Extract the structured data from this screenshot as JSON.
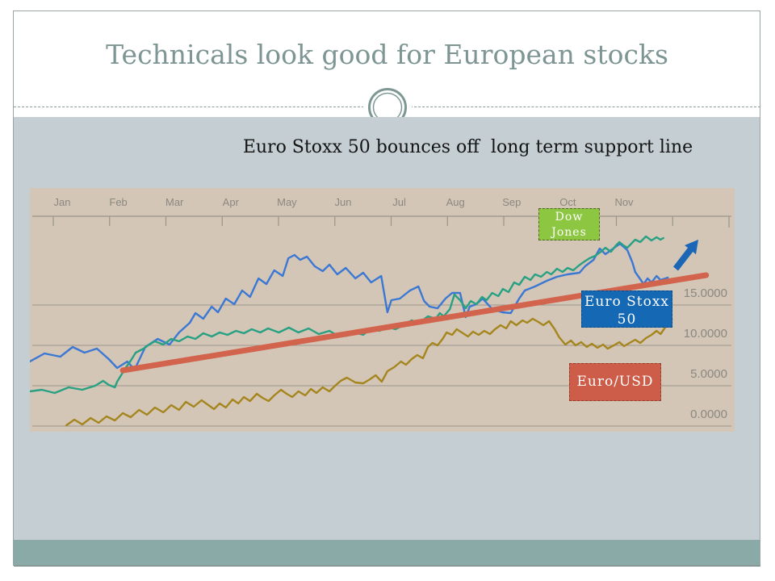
{
  "slide": {
    "title": "Technicals look good for European stocks",
    "subtitle": "Euro Stoxx 50 bounces off  long term support line"
  },
  "theme": {
    "title_color": "#7d9694",
    "body_bg": "#c4ced3",
    "footer_bar": "#89aaa6",
    "footer_bar_edge": "#64817e",
    "frame_border": "#9aa4a4",
    "divider": "#8a9c9b",
    "ornament_ring": "#7d9894"
  },
  "chart_data": {
    "type": "line",
    "x_axis": {
      "unit": "months (0 = Jan tick, 10 = Nov tick)",
      "labels": [
        "Jan",
        "Feb",
        "Mar",
        "Apr",
        "May",
        "Jun",
        "Jul",
        "Aug",
        "Sep",
        "Oct",
        "Nov"
      ]
    },
    "y_axis": {
      "side": "right",
      "tick_labels": [
        "15.0000",
        "10.0000",
        "5.0000",
        "0.0000"
      ],
      "tick_values": [
        15,
        10,
        5,
        0
      ]
    },
    "ylim": [
      0,
      26.2
    ],
    "xlim": [
      -0.45,
      12.1
    ],
    "grid": true,
    "background": "#d4c6b6",
    "grid_color": "#9a948a",
    "label_color": "#8a8880",
    "series": [
      {
        "name": "Euro Stoxx 50",
        "color": "#3a78d4",
        "points": [
          [
            -0.43,
            8.0
          ],
          [
            -0.17,
            9.0
          ],
          [
            0.11,
            8.6
          ],
          [
            0.33,
            9.8
          ],
          [
            0.54,
            9.1
          ],
          [
            0.76,
            9.6
          ],
          [
            0.97,
            8.3
          ],
          [
            1.12,
            7.2
          ],
          [
            1.3,
            8.0
          ],
          [
            1.43,
            7.0
          ],
          [
            1.62,
            9.8
          ],
          [
            1.84,
            10.8
          ],
          [
            2.05,
            10.1
          ],
          [
            2.22,
            11.6
          ],
          [
            2.41,
            12.8
          ],
          [
            2.51,
            14.0
          ],
          [
            2.65,
            13.3
          ],
          [
            2.8,
            14.8
          ],
          [
            2.91,
            14.1
          ],
          [
            3.05,
            15.8
          ],
          [
            3.2,
            15.1
          ],
          [
            3.34,
            16.8
          ],
          [
            3.48,
            16.0
          ],
          [
            3.63,
            18.3
          ],
          [
            3.77,
            17.6
          ],
          [
            3.91,
            19.3
          ],
          [
            4.06,
            18.6
          ],
          [
            4.16,
            20.8
          ],
          [
            4.27,
            21.2
          ],
          [
            4.37,
            20.6
          ],
          [
            4.49,
            21.0
          ],
          [
            4.63,
            19.8
          ],
          [
            4.77,
            19.2
          ],
          [
            4.89,
            20.0
          ],
          [
            5.03,
            18.8
          ],
          [
            5.18,
            19.6
          ],
          [
            5.35,
            18.3
          ],
          [
            5.49,
            19.0
          ],
          [
            5.63,
            17.8
          ],
          [
            5.81,
            18.6
          ],
          [
            5.92,
            14.1
          ],
          [
            5.99,
            15.6
          ],
          [
            6.14,
            15.8
          ],
          [
            6.32,
            16.8
          ],
          [
            6.47,
            17.3
          ],
          [
            6.57,
            15.5
          ],
          [
            6.67,
            14.8
          ],
          [
            6.81,
            14.6
          ],
          [
            6.95,
            15.8
          ],
          [
            7.07,
            16.5
          ],
          [
            7.21,
            16.5
          ],
          [
            7.31,
            13.5
          ],
          [
            7.38,
            14.8
          ],
          [
            7.5,
            15.1
          ],
          [
            7.61,
            15.8
          ],
          [
            7.78,
            14.5
          ],
          [
            7.96,
            14.1
          ],
          [
            8.11,
            14.0
          ],
          [
            8.26,
            15.8
          ],
          [
            8.36,
            16.8
          ],
          [
            8.54,
            17.3
          ],
          [
            8.75,
            18.0
          ],
          [
            8.93,
            18.5
          ],
          [
            9.12,
            18.8
          ],
          [
            9.33,
            19.0
          ],
          [
            9.43,
            19.8
          ],
          [
            9.58,
            20.6
          ],
          [
            9.69,
            22.0
          ],
          [
            9.79,
            21.3
          ],
          [
            9.89,
            21.8
          ],
          [
            10.05,
            22.6
          ],
          [
            10.18,
            21.8
          ],
          [
            10.27,
            20.3
          ],
          [
            10.32,
            19.1
          ],
          [
            10.47,
            17.6
          ],
          [
            10.54,
            18.3
          ],
          [
            10.61,
            17.8
          ],
          [
            10.7,
            18.6
          ],
          [
            10.77,
            18.1
          ],
          [
            10.9,
            18.4
          ]
        ]
      },
      {
        "name": "Euro/USD",
        "color": "#a5861e",
        "points": [
          [
            0.22,
            0.1
          ],
          [
            0.36,
            0.8
          ],
          [
            0.5,
            0.2
          ],
          [
            0.65,
            1.0
          ],
          [
            0.79,
            0.4
          ],
          [
            0.93,
            1.2
          ],
          [
            1.08,
            0.7
          ],
          [
            1.22,
            1.6
          ],
          [
            1.36,
            1.1
          ],
          [
            1.51,
            2.0
          ],
          [
            1.65,
            1.4
          ],
          [
            1.79,
            2.3
          ],
          [
            1.94,
            1.7
          ],
          [
            2.08,
            2.6
          ],
          [
            2.22,
            2.0
          ],
          [
            2.34,
            3.0
          ],
          [
            2.48,
            2.4
          ],
          [
            2.62,
            3.2
          ],
          [
            2.74,
            2.6
          ],
          [
            2.84,
            2.1
          ],
          [
            2.94,
            2.8
          ],
          [
            3.05,
            2.3
          ],
          [
            3.17,
            3.3
          ],
          [
            3.27,
            2.8
          ],
          [
            3.37,
            3.6
          ],
          [
            3.48,
            3.1
          ],
          [
            3.6,
            4.0
          ],
          [
            3.7,
            3.5
          ],
          [
            3.81,
            3.1
          ],
          [
            3.91,
            3.8
          ],
          [
            4.03,
            4.5
          ],
          [
            4.13,
            4.0
          ],
          [
            4.23,
            3.6
          ],
          [
            4.34,
            4.3
          ],
          [
            4.46,
            3.8
          ],
          [
            4.56,
            4.6
          ],
          [
            4.66,
            4.1
          ],
          [
            4.77,
            4.8
          ],
          [
            4.89,
            4.3
          ],
          [
            4.99,
            5.0
          ],
          [
            5.09,
            5.6
          ],
          [
            5.2,
            6.0
          ],
          [
            5.35,
            5.4
          ],
          [
            5.49,
            5.3
          ],
          [
            5.61,
            5.8
          ],
          [
            5.71,
            6.3
          ],
          [
            5.82,
            5.5
          ],
          [
            5.92,
            6.8
          ],
          [
            6.04,
            7.3
          ],
          [
            6.16,
            8.0
          ],
          [
            6.25,
            7.6
          ],
          [
            6.35,
            8.3
          ],
          [
            6.45,
            8.8
          ],
          [
            6.55,
            8.4
          ],
          [
            6.64,
            9.8
          ],
          [
            6.72,
            10.3
          ],
          [
            6.81,
            10.0
          ],
          [
            6.9,
            10.8
          ],
          [
            6.97,
            11.6
          ],
          [
            7.07,
            11.3
          ],
          [
            7.15,
            12.0
          ],
          [
            7.24,
            11.6
          ],
          [
            7.35,
            11.1
          ],
          [
            7.44,
            11.7
          ],
          [
            7.54,
            11.3
          ],
          [
            7.64,
            11.8
          ],
          [
            7.74,
            11.4
          ],
          [
            7.83,
            12.0
          ],
          [
            7.93,
            12.5
          ],
          [
            8.03,
            12.1
          ],
          [
            8.11,
            13.0
          ],
          [
            8.21,
            12.5
          ],
          [
            8.32,
            13.1
          ],
          [
            8.4,
            12.8
          ],
          [
            8.5,
            13.3
          ],
          [
            8.6,
            12.9
          ],
          [
            8.69,
            12.5
          ],
          [
            8.79,
            13.0
          ],
          [
            8.89,
            12.0
          ],
          [
            8.97,
            11.0
          ],
          [
            9.08,
            10.1
          ],
          [
            9.18,
            10.6
          ],
          [
            9.26,
            10.0
          ],
          [
            9.36,
            10.4
          ],
          [
            9.46,
            9.8
          ],
          [
            9.55,
            10.2
          ],
          [
            9.65,
            9.7
          ],
          [
            9.75,
            10.1
          ],
          [
            9.83,
            9.6
          ],
          [
            9.94,
            10.0
          ],
          [
            10.04,
            10.4
          ],
          [
            10.12,
            9.9
          ],
          [
            10.22,
            10.3
          ],
          [
            10.32,
            10.7
          ],
          [
            10.41,
            10.3
          ],
          [
            10.51,
            10.9
          ],
          [
            10.61,
            11.3
          ],
          [
            10.7,
            11.8
          ],
          [
            10.77,
            11.4
          ],
          [
            10.84,
            12.1
          ],
          [
            10.91,
            12.8
          ],
          [
            10.97,
            13.2
          ]
        ]
      },
      {
        "name": "Dow Jones",
        "color": "#28a183",
        "points": [
          [
            -0.43,
            4.3
          ],
          [
            -0.22,
            4.5
          ],
          [
            0.01,
            4.1
          ],
          [
            0.26,
            4.8
          ],
          [
            0.5,
            4.5
          ],
          [
            0.73,
            5.0
          ],
          [
            0.87,
            5.6
          ],
          [
            0.97,
            5.1
          ],
          [
            1.08,
            4.8
          ],
          [
            1.12,
            5.5
          ],
          [
            1.26,
            7.1
          ],
          [
            1.36,
            8.1
          ],
          [
            1.45,
            9.1
          ],
          [
            1.59,
            9.6
          ],
          [
            1.69,
            10.1
          ],
          [
            1.79,
            10.5
          ],
          [
            1.94,
            10.1
          ],
          [
            2.08,
            10.8
          ],
          [
            2.22,
            10.5
          ],
          [
            2.37,
            11.1
          ],
          [
            2.51,
            10.8
          ],
          [
            2.65,
            11.5
          ],
          [
            2.8,
            11.1
          ],
          [
            2.94,
            11.6
          ],
          [
            3.08,
            11.3
          ],
          [
            3.23,
            11.8
          ],
          [
            3.37,
            11.5
          ],
          [
            3.51,
            12.0
          ],
          [
            3.66,
            11.6
          ],
          [
            3.8,
            12.1
          ],
          [
            3.99,
            11.6
          ],
          [
            4.17,
            12.2
          ],
          [
            4.34,
            11.6
          ],
          [
            4.52,
            12.1
          ],
          [
            4.7,
            11.4
          ],
          [
            4.89,
            11.8
          ],
          [
            5.06,
            11.1
          ],
          [
            5.2,
            11.2
          ],
          [
            5.35,
            11.6
          ],
          [
            5.49,
            11.3
          ],
          [
            5.63,
            12.1
          ],
          [
            5.78,
            11.8
          ],
          [
            5.92,
            12.3
          ],
          [
            6.06,
            12.0
          ],
          [
            6.21,
            12.5
          ],
          [
            6.35,
            13.1
          ],
          [
            6.49,
            12.8
          ],
          [
            6.64,
            13.6
          ],
          [
            6.78,
            13.3
          ],
          [
            6.85,
            14.0
          ],
          [
            6.92,
            13.6
          ],
          [
            7.03,
            14.5
          ],
          [
            7.11,
            16.3
          ],
          [
            7.21,
            15.6
          ],
          [
            7.31,
            14.6
          ],
          [
            7.4,
            15.5
          ],
          [
            7.5,
            15.1
          ],
          [
            7.6,
            16.0
          ],
          [
            7.68,
            15.6
          ],
          [
            7.78,
            16.5
          ],
          [
            7.89,
            16.1
          ],
          [
            7.97,
            17.0
          ],
          [
            8.07,
            16.6
          ],
          [
            8.17,
            17.8
          ],
          [
            8.26,
            17.5
          ],
          [
            8.36,
            18.5
          ],
          [
            8.46,
            18.1
          ],
          [
            8.54,
            18.8
          ],
          [
            8.65,
            18.5
          ],
          [
            8.75,
            19.1
          ],
          [
            8.83,
            18.8
          ],
          [
            8.93,
            19.5
          ],
          [
            9.03,
            19.1
          ],
          [
            9.12,
            19.6
          ],
          [
            9.22,
            19.3
          ],
          [
            9.32,
            19.9
          ],
          [
            9.4,
            20.3
          ],
          [
            9.51,
            20.8
          ],
          [
            9.61,
            21.1
          ],
          [
            9.71,
            21.6
          ],
          [
            9.79,
            22.1
          ],
          [
            9.89,
            21.6
          ],
          [
            9.98,
            22.4
          ],
          [
            10.04,
            22.8
          ],
          [
            10.11,
            22.4
          ],
          [
            10.18,
            22.1
          ],
          [
            10.25,
            22.6
          ],
          [
            10.32,
            23.1
          ],
          [
            10.41,
            22.8
          ],
          [
            10.51,
            23.5
          ],
          [
            10.61,
            23.0
          ],
          [
            10.7,
            23.4
          ],
          [
            10.77,
            23.1
          ],
          [
            10.82,
            23.3
          ]
        ]
      }
    ],
    "support_line": {
      "label": "long term support line",
      "color": "#d2634c",
      "from": [
        1.22,
        6.9
      ],
      "to": [
        11.58,
        18.7
      ]
    },
    "annotations": [
      {
        "text": "Dow Jones",
        "lines": [
          "Dow",
          "Jones"
        ],
        "fill": "#8dc742",
        "border": "#55622e",
        "text_color": "#ffffff"
      },
      {
        "text": "Euro Stoxx 50",
        "lines": [
          "Euro Stoxx",
          "50"
        ],
        "fill": "#1568b4",
        "border": "#0d4a85",
        "text_color": "#ffffff"
      },
      {
        "text": "Euro/USD",
        "lines": [
          "Euro/USD"
        ],
        "fill": "#cd5c49",
        "border": "#8f3e2f",
        "text_color": "#ffffff"
      }
    ],
    "arrow": {
      "direction": "up-right",
      "color": "#1c67b5"
    }
  }
}
